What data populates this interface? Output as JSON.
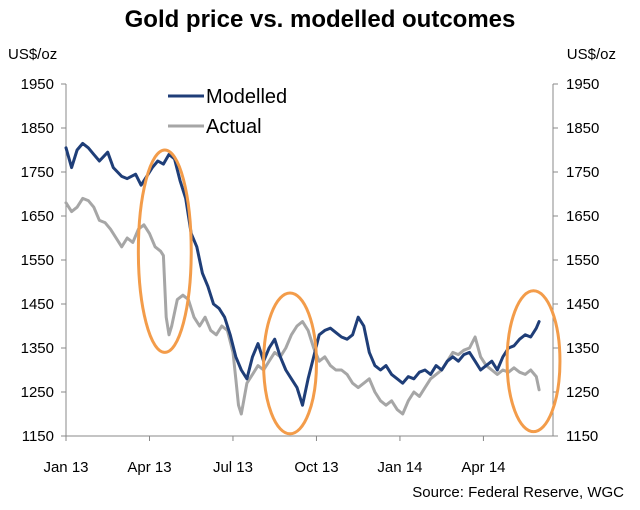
{
  "chart_data": {
    "type": "line",
    "title": "Gold price vs. modelled outcomes",
    "source": "Source: Federal Reserve, WGC",
    "y_unit_left": "US$/oz",
    "y_unit_right": "US$/oz",
    "ylim": [
      1150,
      1950
    ],
    "yticks": [
      1150,
      1250,
      1350,
      1450,
      1550,
      1650,
      1750,
      1850,
      1950
    ],
    "xlim": [
      0,
      17.5
    ],
    "xticks": [
      {
        "x": 0,
        "label": "Jan 13"
      },
      {
        "x": 3,
        "label": "Apr 13"
      },
      {
        "x": 6,
        "label": "Jul 13"
      },
      {
        "x": 9,
        "label": "Oct 13"
      },
      {
        "x": 12,
        "label": "Jan 14"
      },
      {
        "x": 15,
        "label": "Apr 14"
      }
    ],
    "legend_position": "top-center",
    "grid": false,
    "series": [
      {
        "name": "Modelled",
        "color": "#1f3e78",
        "points": [
          [
            0,
            1805
          ],
          [
            0.2,
            1760
          ],
          [
            0.4,
            1800
          ],
          [
            0.6,
            1815
          ],
          [
            0.8,
            1805
          ],
          [
            1.0,
            1790
          ],
          [
            1.2,
            1775
          ],
          [
            1.5,
            1795
          ],
          [
            1.7,
            1760
          ],
          [
            2.0,
            1740
          ],
          [
            2.2,
            1735
          ],
          [
            2.5,
            1745
          ],
          [
            2.7,
            1720
          ],
          [
            2.9,
            1740
          ],
          [
            3.1,
            1760
          ],
          [
            3.3,
            1775
          ],
          [
            3.5,
            1768
          ],
          [
            3.7,
            1790
          ],
          [
            3.9,
            1780
          ],
          [
            4.1,
            1730
          ],
          [
            4.3,
            1690
          ],
          [
            4.5,
            1610
          ],
          [
            4.7,
            1580
          ],
          [
            4.9,
            1520
          ],
          [
            5.1,
            1490
          ],
          [
            5.3,
            1450
          ],
          [
            5.5,
            1440
          ],
          [
            5.7,
            1420
          ],
          [
            5.9,
            1380
          ],
          [
            6.1,
            1330
          ],
          [
            6.3,
            1300
          ],
          [
            6.5,
            1280
          ],
          [
            6.7,
            1330
          ],
          [
            6.9,
            1360
          ],
          [
            7.1,
            1320
          ],
          [
            7.3,
            1350
          ],
          [
            7.5,
            1370
          ],
          [
            7.7,
            1330
          ],
          [
            7.9,
            1300
          ],
          [
            8.1,
            1280
          ],
          [
            8.3,
            1260
          ],
          [
            8.5,
            1220
          ],
          [
            8.7,
            1280
          ],
          [
            8.9,
            1330
          ],
          [
            9.1,
            1380
          ],
          [
            9.3,
            1390
          ],
          [
            9.5,
            1395
          ],
          [
            9.7,
            1385
          ],
          [
            9.9,
            1375
          ],
          [
            10.1,
            1370
          ],
          [
            10.3,
            1380
          ],
          [
            10.5,
            1420
          ],
          [
            10.7,
            1400
          ],
          [
            10.9,
            1340
          ],
          [
            11.1,
            1310
          ],
          [
            11.3,
            1300
          ],
          [
            11.5,
            1310
          ],
          [
            11.7,
            1290
          ],
          [
            11.9,
            1280
          ],
          [
            12.1,
            1270
          ],
          [
            12.3,
            1285
          ],
          [
            12.5,
            1280
          ],
          [
            12.7,
            1295
          ],
          [
            12.9,
            1300
          ],
          [
            13.1,
            1290
          ],
          [
            13.3,
            1310
          ],
          [
            13.5,
            1300
          ],
          [
            13.7,
            1320
          ],
          [
            13.9,
            1330
          ],
          [
            14.1,
            1320
          ],
          [
            14.3,
            1335
          ],
          [
            14.5,
            1340
          ],
          [
            14.7,
            1320
          ],
          [
            14.9,
            1300
          ],
          [
            15.1,
            1310
          ],
          [
            15.3,
            1320
          ],
          [
            15.5,
            1300
          ],
          [
            15.7,
            1330
          ],
          [
            15.9,
            1350
          ],
          [
            16.1,
            1355
          ],
          [
            16.3,
            1370
          ],
          [
            16.5,
            1380
          ],
          [
            16.7,
            1375
          ],
          [
            16.9,
            1395
          ],
          [
            17.0,
            1410
          ]
        ]
      },
      {
        "name": "Actual",
        "color": "#a6a6a6",
        "points": [
          [
            0,
            1680
          ],
          [
            0.2,
            1660
          ],
          [
            0.4,
            1670
          ],
          [
            0.6,
            1690
          ],
          [
            0.8,
            1685
          ],
          [
            1.0,
            1670
          ],
          [
            1.2,
            1640
          ],
          [
            1.4,
            1635
          ],
          [
            1.6,
            1620
          ],
          [
            1.8,
            1600
          ],
          [
            2.0,
            1580
          ],
          [
            2.2,
            1600
          ],
          [
            2.4,
            1590
          ],
          [
            2.6,
            1620
          ],
          [
            2.8,
            1630
          ],
          [
            3.0,
            1610
          ],
          [
            3.2,
            1580
          ],
          [
            3.4,
            1570
          ],
          [
            3.5,
            1560
          ],
          [
            3.6,
            1420
          ],
          [
            3.7,
            1380
          ],
          [
            3.8,
            1400
          ],
          [
            4.0,
            1460
          ],
          [
            4.2,
            1470
          ],
          [
            4.4,
            1460
          ],
          [
            4.6,
            1420
          ],
          [
            4.8,
            1400
          ],
          [
            5.0,
            1420
          ],
          [
            5.2,
            1390
          ],
          [
            5.4,
            1380
          ],
          [
            5.6,
            1400
          ],
          [
            5.8,
            1390
          ],
          [
            6.0,
            1340
          ],
          [
            6.1,
            1280
          ],
          [
            6.2,
            1220
          ],
          [
            6.3,
            1200
          ],
          [
            6.5,
            1270
          ],
          [
            6.7,
            1290
          ],
          [
            6.9,
            1310
          ],
          [
            7.1,
            1300
          ],
          [
            7.3,
            1320
          ],
          [
            7.5,
            1340
          ],
          [
            7.7,
            1330
          ],
          [
            7.9,
            1350
          ],
          [
            8.1,
            1380
          ],
          [
            8.3,
            1400
          ],
          [
            8.5,
            1410
          ],
          [
            8.7,
            1390
          ],
          [
            8.9,
            1350
          ],
          [
            9.1,
            1320
          ],
          [
            9.3,
            1330
          ],
          [
            9.5,
            1310
          ],
          [
            9.7,
            1300
          ],
          [
            9.9,
            1300
          ],
          [
            10.1,
            1290
          ],
          [
            10.3,
            1270
          ],
          [
            10.5,
            1260
          ],
          [
            10.7,
            1270
          ],
          [
            10.9,
            1280
          ],
          [
            11.1,
            1250
          ],
          [
            11.3,
            1230
          ],
          [
            11.5,
            1220
          ],
          [
            11.7,
            1230
          ],
          [
            11.9,
            1210
          ],
          [
            12.1,
            1200
          ],
          [
            12.3,
            1230
          ],
          [
            12.5,
            1250
          ],
          [
            12.7,
            1240
          ],
          [
            12.9,
            1260
          ],
          [
            13.1,
            1280
          ],
          [
            13.3,
            1290
          ],
          [
            13.5,
            1300
          ],
          [
            13.7,
            1320
          ],
          [
            13.9,
            1340
          ],
          [
            14.1,
            1335
          ],
          [
            14.3,
            1345
          ],
          [
            14.5,
            1350
          ],
          [
            14.7,
            1375
          ],
          [
            14.9,
            1330
          ],
          [
            15.1,
            1310
          ],
          [
            15.3,
            1300
          ],
          [
            15.5,
            1290
          ],
          [
            15.7,
            1300
          ],
          [
            15.9,
            1295
          ],
          [
            16.1,
            1305
          ],
          [
            16.3,
            1295
          ],
          [
            16.5,
            1290
          ],
          [
            16.7,
            1300
          ],
          [
            16.9,
            1285
          ],
          [
            17.0,
            1255
          ]
        ]
      }
    ],
    "annotations": [
      {
        "type": "ellipse",
        "color": "#f39c4a",
        "cx": 3.55,
        "cy": 1570,
        "rx": 0.95,
        "ry": 230
      },
      {
        "type": "ellipse",
        "color": "#f39c4a",
        "cx": 8.05,
        "cy": 1315,
        "rx": 0.95,
        "ry": 160
      },
      {
        "type": "ellipse",
        "color": "#f39c4a",
        "cx": 16.8,
        "cy": 1320,
        "rx": 0.95,
        "ry": 160
      }
    ]
  }
}
